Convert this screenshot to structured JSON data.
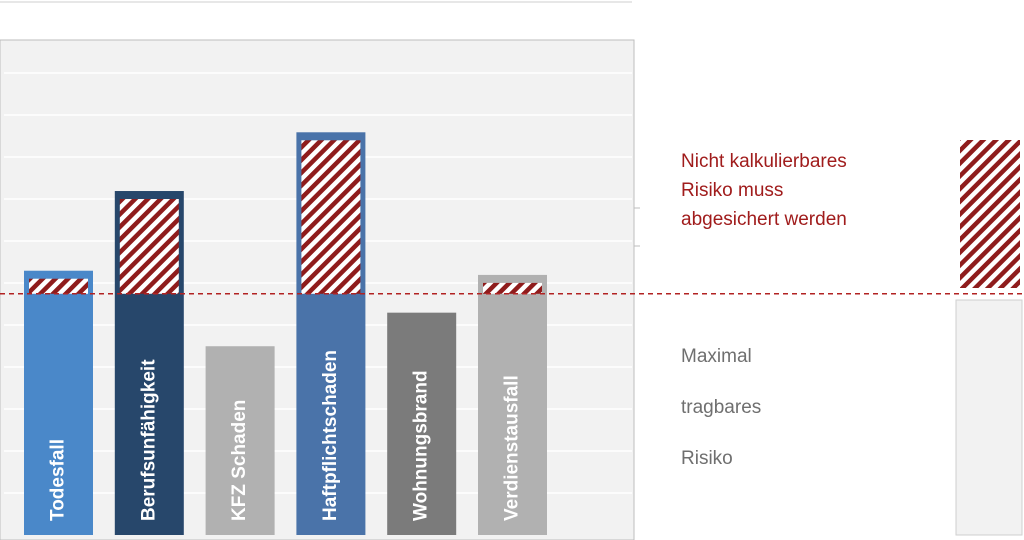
{
  "chart_data": {
    "type": "bar",
    "categories": [
      "Todesfall",
      "Berufsunfähigkeit",
      "KFZ Schaden",
      "Haftpflichtschaden",
      "Wohnungsbrand",
      "Verdienstausfall"
    ],
    "values": [
      6.3,
      8.2,
      4.5,
      9.6,
      5.3,
      6.2
    ],
    "colors": [
      "#4a88c9",
      "#27476b",
      "#b1b1b1",
      "#4a73a9",
      "#7b7b7b",
      "#b1b1b1"
    ],
    "threshold": 5.75,
    "ylim": [
      0,
      11.8
    ],
    "grid": true,
    "risk_label": [
      "Nicht kalkulierbares",
      "Risiko muss",
      "abgesichert werden"
    ],
    "capacity_label": [
      "Maximal",
      "tragbares",
      "Risiko"
    ]
  }
}
